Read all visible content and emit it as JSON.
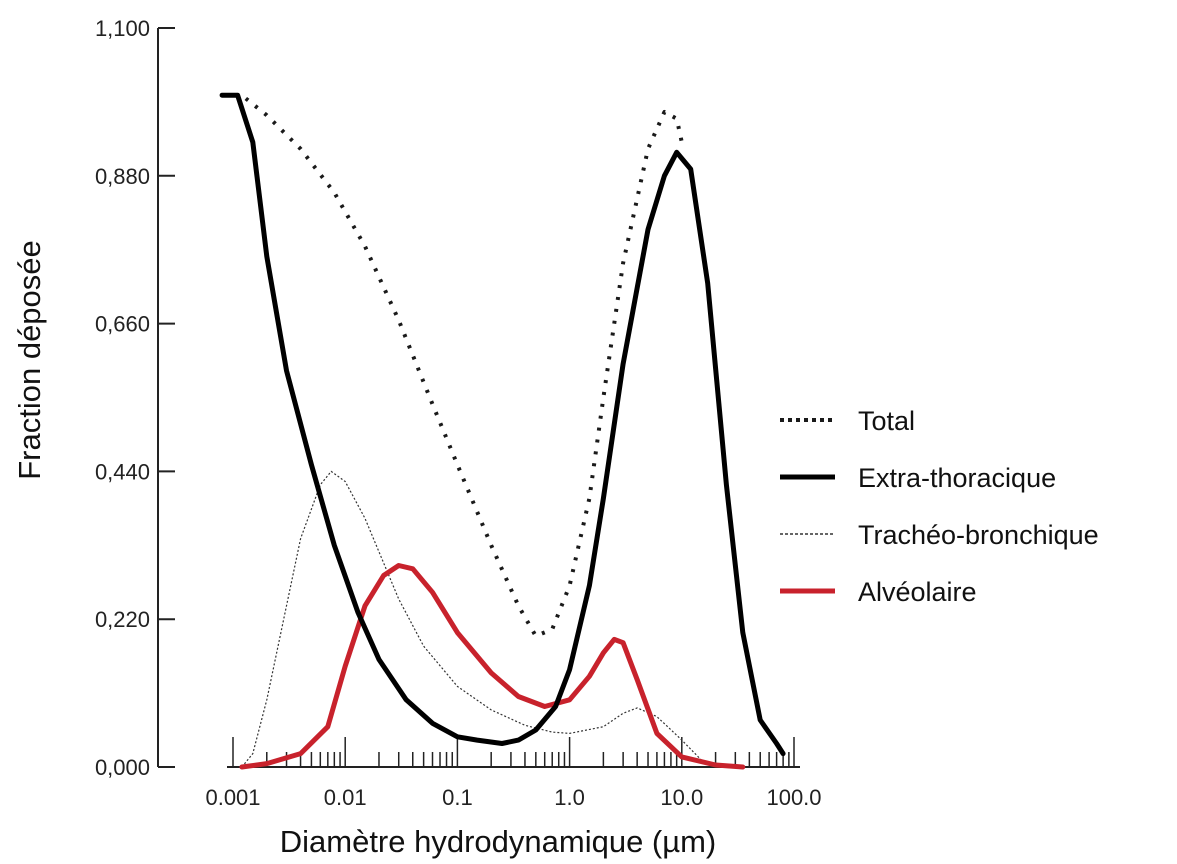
{
  "chart_data": {
    "type": "line",
    "title": "",
    "xlabel": "Diamètre hydrodynamique (µm)",
    "ylabel": "Fraction déposée",
    "x_scale": "log",
    "xlim": [
      0.0003,
      150
    ],
    "ylim": [
      0,
      1.1
    ],
    "x_ticks": [
      {
        "value": 0.001,
        "label": "0.001"
      },
      {
        "value": 0.01,
        "label": "0.01"
      },
      {
        "value": 0.1,
        "label": "0.1"
      },
      {
        "value": 1,
        "label": "1.0"
      },
      {
        "value": 10,
        "label": "10.0"
      },
      {
        "value": 100,
        "label": "100.0"
      }
    ],
    "y_ticks": [
      {
        "value": 0,
        "label": "0,000"
      },
      {
        "value": 0.22,
        "label": "0,220"
      },
      {
        "value": 0.44,
        "label": "0,440"
      },
      {
        "value": 0.66,
        "label": "0,660"
      },
      {
        "value": 0.88,
        "label": "0,880"
      },
      {
        "value": 1.1,
        "label": "1,100"
      }
    ],
    "grid": false,
    "legend_position": "right",
    "series": [
      {
        "name": "Total",
        "style": "dotted",
        "color": "#1a1a1a",
        "points": [
          [
            0.0013,
            0.995
          ],
          [
            0.002,
            0.97
          ],
          [
            0.004,
            0.92
          ],
          [
            0.008,
            0.855
          ],
          [
            0.015,
            0.775
          ],
          [
            0.03,
            0.665
          ],
          [
            0.06,
            0.54
          ],
          [
            0.1,
            0.45
          ],
          [
            0.2,
            0.33
          ],
          [
            0.35,
            0.24
          ],
          [
            0.5,
            0.195
          ],
          [
            0.7,
            0.205
          ],
          [
            1,
            0.27
          ],
          [
            1.5,
            0.4
          ],
          [
            2,
            0.55
          ],
          [
            3,
            0.75
          ],
          [
            5,
            0.92
          ],
          [
            7,
            0.975
          ],
          [
            9,
            0.965
          ],
          [
            10,
            0.93
          ]
        ]
      },
      {
        "name": "Extra-thoracique",
        "style": "solid",
        "color": "#000000",
        "points": [
          [
            0.0008,
            1.0
          ],
          [
            0.0011,
            1.0
          ],
          [
            0.0015,
            0.93
          ],
          [
            0.002,
            0.76
          ],
          [
            0.003,
            0.59
          ],
          [
            0.005,
            0.45
          ],
          [
            0.008,
            0.33
          ],
          [
            0.013,
            0.23
          ],
          [
            0.02,
            0.16
          ],
          [
            0.035,
            0.1
          ],
          [
            0.06,
            0.065
          ],
          [
            0.1,
            0.045
          ],
          [
            0.15,
            0.04
          ],
          [
            0.25,
            0.035
          ],
          [
            0.35,
            0.04
          ],
          [
            0.5,
            0.055
          ],
          [
            0.75,
            0.09
          ],
          [
            1,
            0.145
          ],
          [
            1.5,
            0.27
          ],
          [
            2,
            0.4
          ],
          [
            3,
            0.6
          ],
          [
            5,
            0.8
          ],
          [
            7,
            0.88
          ],
          [
            9,
            0.915
          ],
          [
            12,
            0.89
          ],
          [
            17,
            0.72
          ],
          [
            25,
            0.42
          ],
          [
            35,
            0.2
          ],
          [
            50,
            0.07
          ],
          [
            70,
            0.035
          ],
          [
            80,
            0.02
          ]
        ]
      },
      {
        "name": "Trachéo-bronchique",
        "style": "dashed",
        "color": "#333333",
        "points": [
          [
            0.0012,
            0.0
          ],
          [
            0.0015,
            0.02
          ],
          [
            0.002,
            0.1
          ],
          [
            0.003,
            0.24
          ],
          [
            0.004,
            0.34
          ],
          [
            0.006,
            0.42
          ],
          [
            0.0075,
            0.44
          ],
          [
            0.01,
            0.425
          ],
          [
            0.015,
            0.37
          ],
          [
            0.03,
            0.25
          ],
          [
            0.05,
            0.18
          ],
          [
            0.1,
            0.12
          ],
          [
            0.2,
            0.085
          ],
          [
            0.4,
            0.062
          ],
          [
            0.7,
            0.052
          ],
          [
            1,
            0.05
          ],
          [
            2,
            0.06
          ],
          [
            3,
            0.08
          ],
          [
            4,
            0.088
          ],
          [
            6,
            0.075
          ],
          [
            10,
            0.04
          ],
          [
            15,
            0.01
          ],
          [
            20,
            0.0
          ]
        ]
      },
      {
        "name": "Alvéolaire",
        "style": "solid",
        "color": "#c8222c",
        "points": [
          [
            0.0012,
            0.0
          ],
          [
            0.002,
            0.005
          ],
          [
            0.004,
            0.02
          ],
          [
            0.007,
            0.06
          ],
          [
            0.01,
            0.15
          ],
          [
            0.015,
            0.24
          ],
          [
            0.022,
            0.285
          ],
          [
            0.03,
            0.3
          ],
          [
            0.04,
            0.295
          ],
          [
            0.06,
            0.26
          ],
          [
            0.1,
            0.2
          ],
          [
            0.2,
            0.14
          ],
          [
            0.35,
            0.105
          ],
          [
            0.6,
            0.09
          ],
          [
            1,
            0.1
          ],
          [
            1.5,
            0.135
          ],
          [
            2,
            0.17
          ],
          [
            2.5,
            0.19
          ],
          [
            3,
            0.185
          ],
          [
            4,
            0.13
          ],
          [
            6,
            0.05
          ],
          [
            10,
            0.015
          ],
          [
            20,
            0.003
          ],
          [
            35,
            0.0
          ]
        ]
      }
    ]
  }
}
